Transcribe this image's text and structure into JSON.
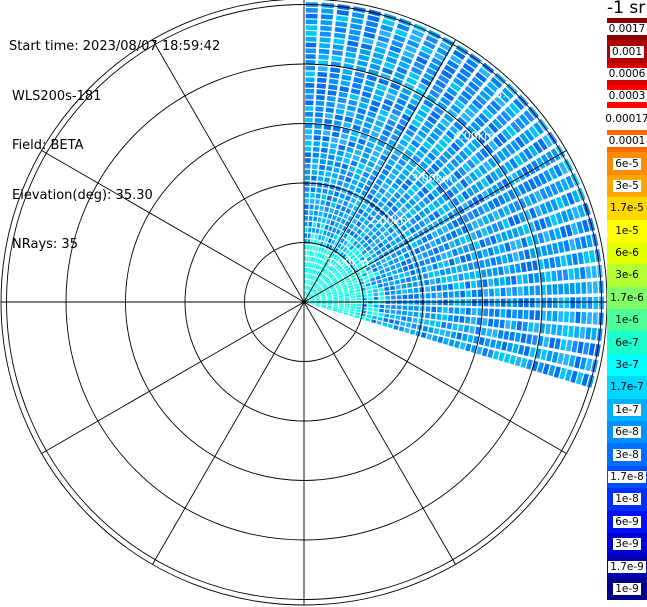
{
  "info": {
    "start_time": "Start time: 2023/08/07 18:59:42",
    "instrument": "WLS200s-181",
    "field": "Field: BETA",
    "elevation": "Elevation(deg): 35.30",
    "nrays": "NRays: 35"
  },
  "unit_label": "-1 sr",
  "chart_data": {
    "type": "heatmap",
    "subtype": "polar-ppi",
    "range_ring_labels": [
      "1.00km",
      "2.00km",
      "3.00km",
      "4.00km",
      "5."
    ],
    "range_rings_km": [
      1,
      2,
      3,
      4,
      5
    ],
    "max_range_km": 5.05,
    "azimuth_start_deg": 0,
    "azimuth_end_deg": 107,
    "n_rays": 35,
    "spokes_deg": [
      0,
      30,
      60,
      90,
      120,
      150,
      180,
      210,
      240,
      270,
      300,
      330
    ],
    "colorbar": {
      "labels": [
        "0.0017",
        "0.001",
        "0.0006",
        "0.0003",
        "0.00017",
        "0.0001",
        "6e-5",
        "3e-5",
        "1.7e-5",
        "1e-5",
        "6e-6",
        "3e-6",
        "1.7e-6",
        "1e-6",
        "6e-7",
        "3e-7",
        "1.7e-7",
        "1e-7",
        "6e-8",
        "3e-8",
        "1.7e-8",
        "1e-8",
        "6e-9",
        "3e-9",
        "1.7e-9",
        "1e-9"
      ],
      "colors": [
        "#8b0000",
        "#b00000",
        "#d40000",
        "#ff0000",
        "#ffffff",
        "#ff6a00",
        "#ff8c00",
        "#ffa500",
        "#ffd700",
        "#ffff00",
        "#e6ff00",
        "#b2ff33",
        "#80ff66",
        "#4dff99",
        "#1affcc",
        "#00ffff",
        "#00d8ff",
        "#00b0ff",
        "#0090ff",
        "#0070ff",
        "#0050ff",
        "#0030ff",
        "#0010f0",
        "#0000d0",
        "#0000b0",
        "#00008b"
      ]
    }
  }
}
